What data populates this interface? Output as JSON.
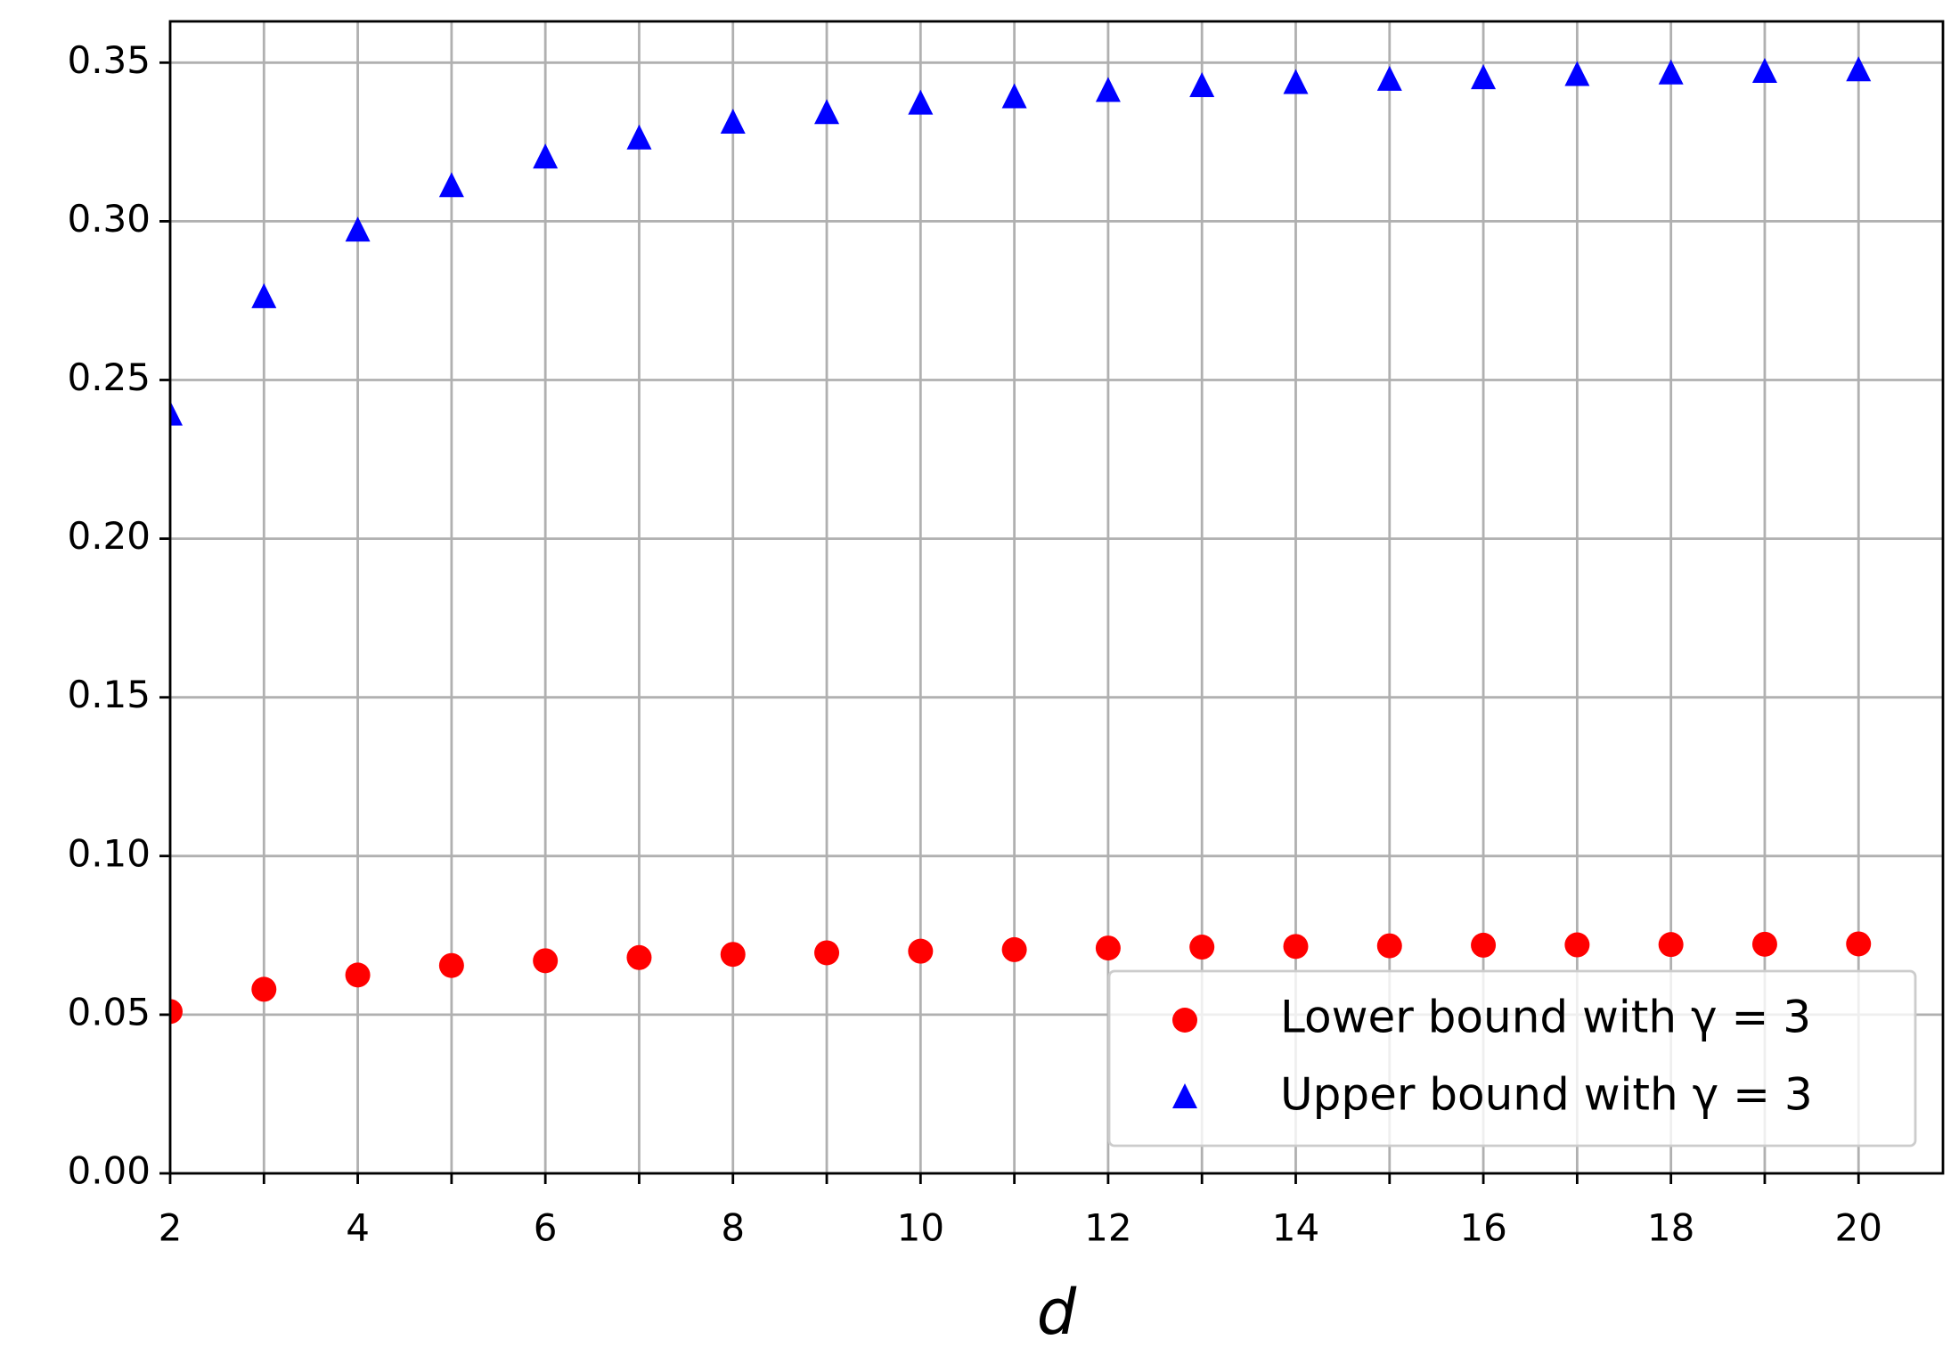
{
  "chart_data": {
    "type": "scatter",
    "x_label": "d",
    "x": [
      2,
      3,
      4,
      5,
      6,
      7,
      8,
      9,
      10,
      11,
      12,
      13,
      14,
      15,
      16,
      17,
      18,
      19,
      20
    ],
    "series": [
      {
        "name": "Lower bound with γ = 3",
        "color": "#ff0000",
        "marker": "circle",
        "values": [
          0.051,
          0.058,
          0.0625,
          0.0655,
          0.067,
          0.068,
          0.069,
          0.0695,
          0.07,
          0.0705,
          0.071,
          0.0713,
          0.0715,
          0.0717,
          0.0719,
          0.072,
          0.0721,
          0.0722,
          0.0723
        ]
      },
      {
        "name": "Upper bound with γ = 3",
        "color": "#0000ff",
        "marker": "triangle",
        "values": [
          0.239,
          0.276,
          0.297,
          0.311,
          0.32,
          0.326,
          0.331,
          0.334,
          0.337,
          0.339,
          0.341,
          0.3425,
          0.3435,
          0.3445,
          0.345,
          0.346,
          0.3465,
          0.347,
          0.3475
        ]
      }
    ],
    "xlim": [
      2,
      20.9
    ],
    "ylim": [
      0,
      0.363
    ],
    "xticks": [
      2,
      4,
      6,
      8,
      10,
      12,
      14,
      16,
      18,
      20
    ],
    "xminorticks": [
      3,
      5,
      7,
      9,
      11,
      13,
      15,
      17,
      19
    ],
    "yticks": [
      {
        "value": 0,
        "label": "0.00"
      },
      {
        "value": 0.05,
        "label": "0.05"
      },
      {
        "value": 0.1,
        "label": "0.10"
      },
      {
        "value": 0.15,
        "label": "0.15"
      },
      {
        "value": 0.2,
        "label": "0.20"
      },
      {
        "value": 0.25,
        "label": "0.25"
      },
      {
        "value": 0.3,
        "label": "0.30"
      },
      {
        "value": 0.35,
        "label": "0.35"
      }
    ],
    "grid": true,
    "legend": "lower right"
  }
}
